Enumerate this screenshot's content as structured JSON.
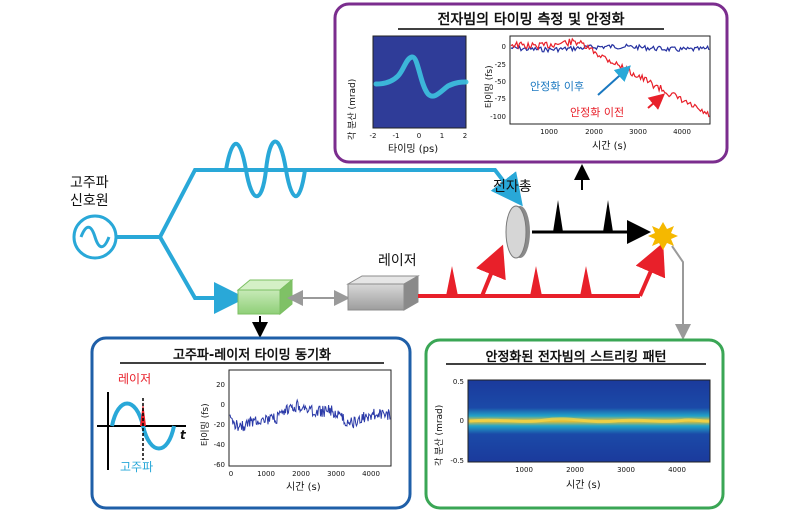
{
  "source": {
    "label_line1": "고주파",
    "label_line2": "신호원"
  },
  "electron_gun_label": "전자총",
  "laser_label": "레이저",
  "colors": {
    "rf": "#29a8d8",
    "laser": "#e8202a",
    "beam": "#000000",
    "purple_frame": "#7b2d8e",
    "blue_frame": "#1f5fa8",
    "green_frame": "#3aa655",
    "gray_arrow": "#a0a0a0"
  },
  "panel_top": {
    "title": "전자빔의 타이밍 측정 및 안정화",
    "inset_left": {
      "ylabel": "각 분산 (mrad)",
      "xlabel": "타이밍 (ps)",
      "xticks": [
        "-2",
        "-1",
        "0",
        "1",
        "2"
      ]
    },
    "inset_right": {
      "ylabel": "타이밍 (fs)",
      "xlabel": "시간 (s)",
      "xticks": [
        "1000",
        "2000",
        "3000",
        "4000"
      ],
      "yticks": [
        "0",
        "-25",
        "-50",
        "-75",
        "-100"
      ],
      "annotation_after": "안정화 이후",
      "annotation_before": "안정화 이전"
    }
  },
  "panel_bottom_left": {
    "title": "고주파-레이저 타이밍 동기화",
    "laser_label": "레이저",
    "rf_label": "고주파",
    "t_label": "t",
    "chart": {
      "ylabel": "타이밍 (fs)",
      "xlabel": "시간 (s)",
      "yticks": [
        "20",
        "0",
        "-20",
        "-40",
        "-60"
      ],
      "xticks": [
        "0",
        "1000",
        "2000",
        "3000",
        "4000"
      ]
    }
  },
  "panel_bottom_right": {
    "title": "안정화된 전자빔의 스트리킹 패턴",
    "ylabel": "각 분산 (mrad)",
    "xlabel": "시간 (s)",
    "yticks": [
      "0.5",
      "0",
      "-0.5"
    ],
    "xticks": [
      "1000",
      "2000",
      "3000",
      "4000"
    ]
  }
}
